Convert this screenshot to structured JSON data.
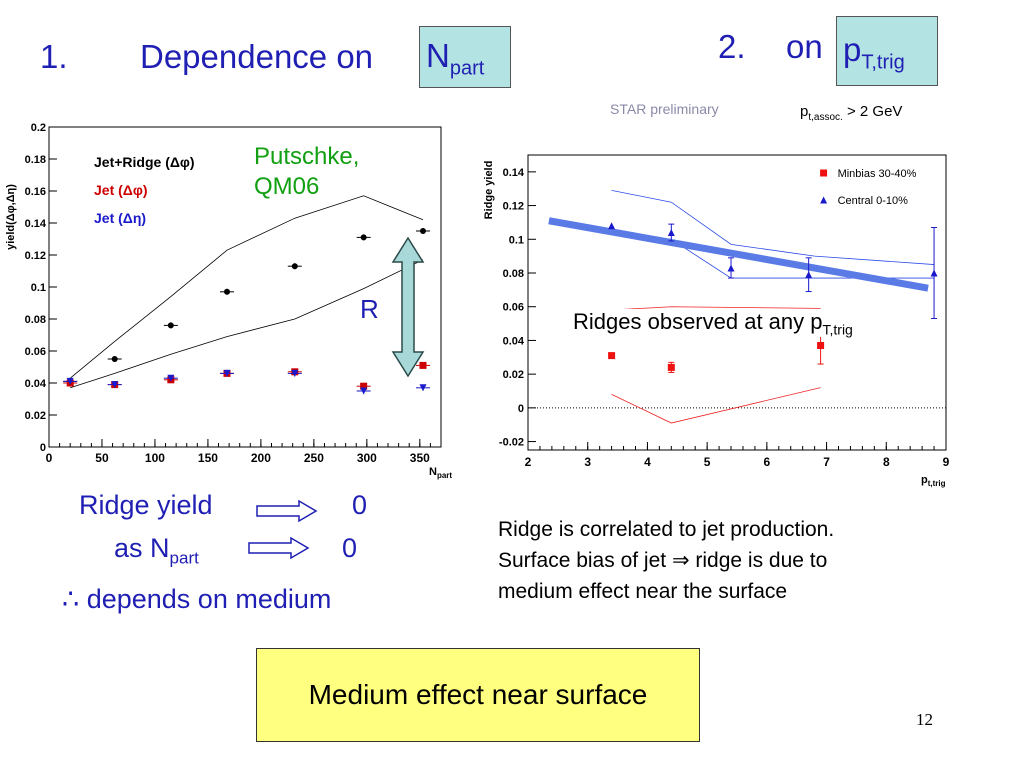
{
  "slide": {
    "title1_number": "1.",
    "title1_text": "Dependence on",
    "title1_box": "N",
    "title1_box_sub": "part",
    "title2_number": "2.",
    "title2_text": "on",
    "title2_box": "p",
    "title2_box_sub": "T,trig",
    "star_preliminary": "STAR preliminary",
    "pt_assoc": "p",
    "pt_assoc_sub": "t,assoc.",
    "pt_assoc_rest": " > 2 GeV",
    "putschke_line1": "Putschke,",
    "putschke_line2": "QM06",
    "r_label": "R",
    "ridges_observed": "Ridges observed at any p",
    "ridges_observed_sub": "T,trig",
    "ridge_yield_label": "Ridge yield",
    "ridge_yield_value": "0",
    "as_npart_label": "as N",
    "as_npart_sub": "part",
    "as_npart_value": "0",
    "therefore_symbol": "∴",
    "depends_text": "depends on medium",
    "conclusion_line1": "Ridge is correlated to jet production.",
    "conclusion_line2_a": "Surface bias of jet",
    "conclusion_line2_arrow": "⇒",
    "conclusion_line2_b": "ridge is due to",
    "conclusion_line3": "medium effect near the surface",
    "summary_box": "Medium effect near surface",
    "page_number": "12"
  },
  "chart_data": [
    {
      "type": "scatter",
      "xlabel": "N",
      "xlabel_sub": "part",
      "ylabel": "yield(Δφ,Δη)",
      "xlim": [
        0,
        370
      ],
      "ylim": [
        0,
        0.2
      ],
      "xticks": [
        "0",
        "50",
        "100",
        "150",
        "200",
        "250",
        "300",
        "350"
      ],
      "yticks": [
        "0",
        "0.02",
        "0.04",
        "0.06",
        "0.08",
        "0.1",
        "0.12",
        "0.14",
        "0.16",
        "0.18",
        "0.2"
      ],
      "legend": [
        "Jet+Ridge (Δφ)",
        "Jet (Δφ)",
        "Jet (Δη)"
      ],
      "series": [
        {
          "name": "Jet+Ridge (Δφ)",
          "color": "#000000",
          "marker": "circle",
          "x": [
            20,
            62,
            115,
            168,
            232,
            297,
            353
          ],
          "y": [
            0.041,
            0.055,
            0.076,
            0.097,
            0.113,
            0.131,
            0.135
          ]
        },
        {
          "name": "Jet (Δφ)",
          "color": "#cc0000",
          "marker": "square",
          "x": [
            20,
            62,
            115,
            168,
            232,
            297,
            353
          ],
          "y": [
            0.04,
            0.039,
            0.042,
            0.046,
            0.047,
            0.038,
            0.051
          ]
        },
        {
          "name": "Jet (Δη)",
          "color": "#1a1acc",
          "marker": "triangle-down",
          "x": [
            20,
            62,
            115,
            168,
            232,
            297,
            353
          ],
          "y": [
            0.041,
            0.039,
            0.043,
            0.046,
            0.046,
            0.035,
            0.037
          ]
        }
      ],
      "band_upper": {
        "x": [
          20,
          62,
          115,
          168,
          232,
          297,
          353
        ],
        "y": [
          0.043,
          0.066,
          0.094,
          0.123,
          0.143,
          0.157,
          0.142
        ]
      },
      "band_lower": {
        "x": [
          20,
          62,
          115,
          168,
          232,
          297,
          353
        ],
        "y": [
          0.037,
          0.046,
          0.058,
          0.069,
          0.08,
          0.099,
          0.117
        ]
      }
    },
    {
      "type": "scatter",
      "xlabel": "p",
      "xlabel_sub": "t,trig",
      "ylabel": "Ridge yield",
      "xlim": [
        2,
        9
      ],
      "ylim": [
        -0.025,
        0.15
      ],
      "xticks": [
        "2",
        "3",
        "4",
        "5",
        "6",
        "7",
        "8",
        "9"
      ],
      "yticks": [
        "-0.02",
        "0",
        "0.02",
        "0.04",
        "0.06",
        "0.08",
        "0.1",
        "0.12",
        "0.14"
      ],
      "legend": [
        "Minbias 30-40%",
        "Central 0-10%"
      ],
      "series": [
        {
          "name": "Minbias 30-40%",
          "color": "#ee1111",
          "marker": "square",
          "x": [
            3.4,
            4.4,
            6.9
          ],
          "y": [
            0.031,
            0.024,
            0.037
          ]
        },
        {
          "name": "Central 0-10%",
          "color": "#1a1acc",
          "marker": "triangle",
          "x": [
            3.4,
            4.4,
            5.4,
            6.7,
            8.8
          ],
          "y": [
            0.108,
            0.104,
            0.083,
            0.079,
            0.08
          ]
        }
      ],
      "trend_line": {
        "x": [
          2.35,
          8.7
        ],
        "y": [
          0.111,
          0.071
        ],
        "color": "#5a7be6"
      }
    }
  ]
}
